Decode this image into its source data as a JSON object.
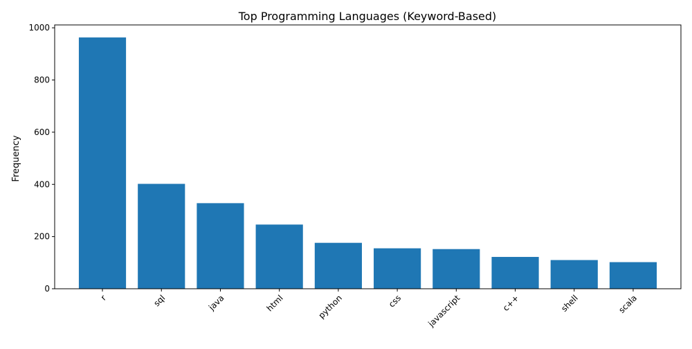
{
  "chart_data": {
    "type": "bar",
    "title": "Top Programming Languages (Keyword-Based)",
    "xlabel": "",
    "ylabel": "Frequency",
    "categories": [
      "r",
      "sql",
      "java",
      "html",
      "python",
      "css",
      "javascript",
      "c++",
      "shell",
      "scala"
    ],
    "values": [
      963,
      402,
      328,
      246,
      176,
      155,
      152,
      122,
      110,
      102
    ],
    "ylim": [
      0,
      1011
    ],
    "yticks": [
      0,
      200,
      400,
      600,
      800,
      1000
    ],
    "xtick_rotation_deg": 45,
    "grid": false,
    "bar_color": "#1f77b4"
  }
}
